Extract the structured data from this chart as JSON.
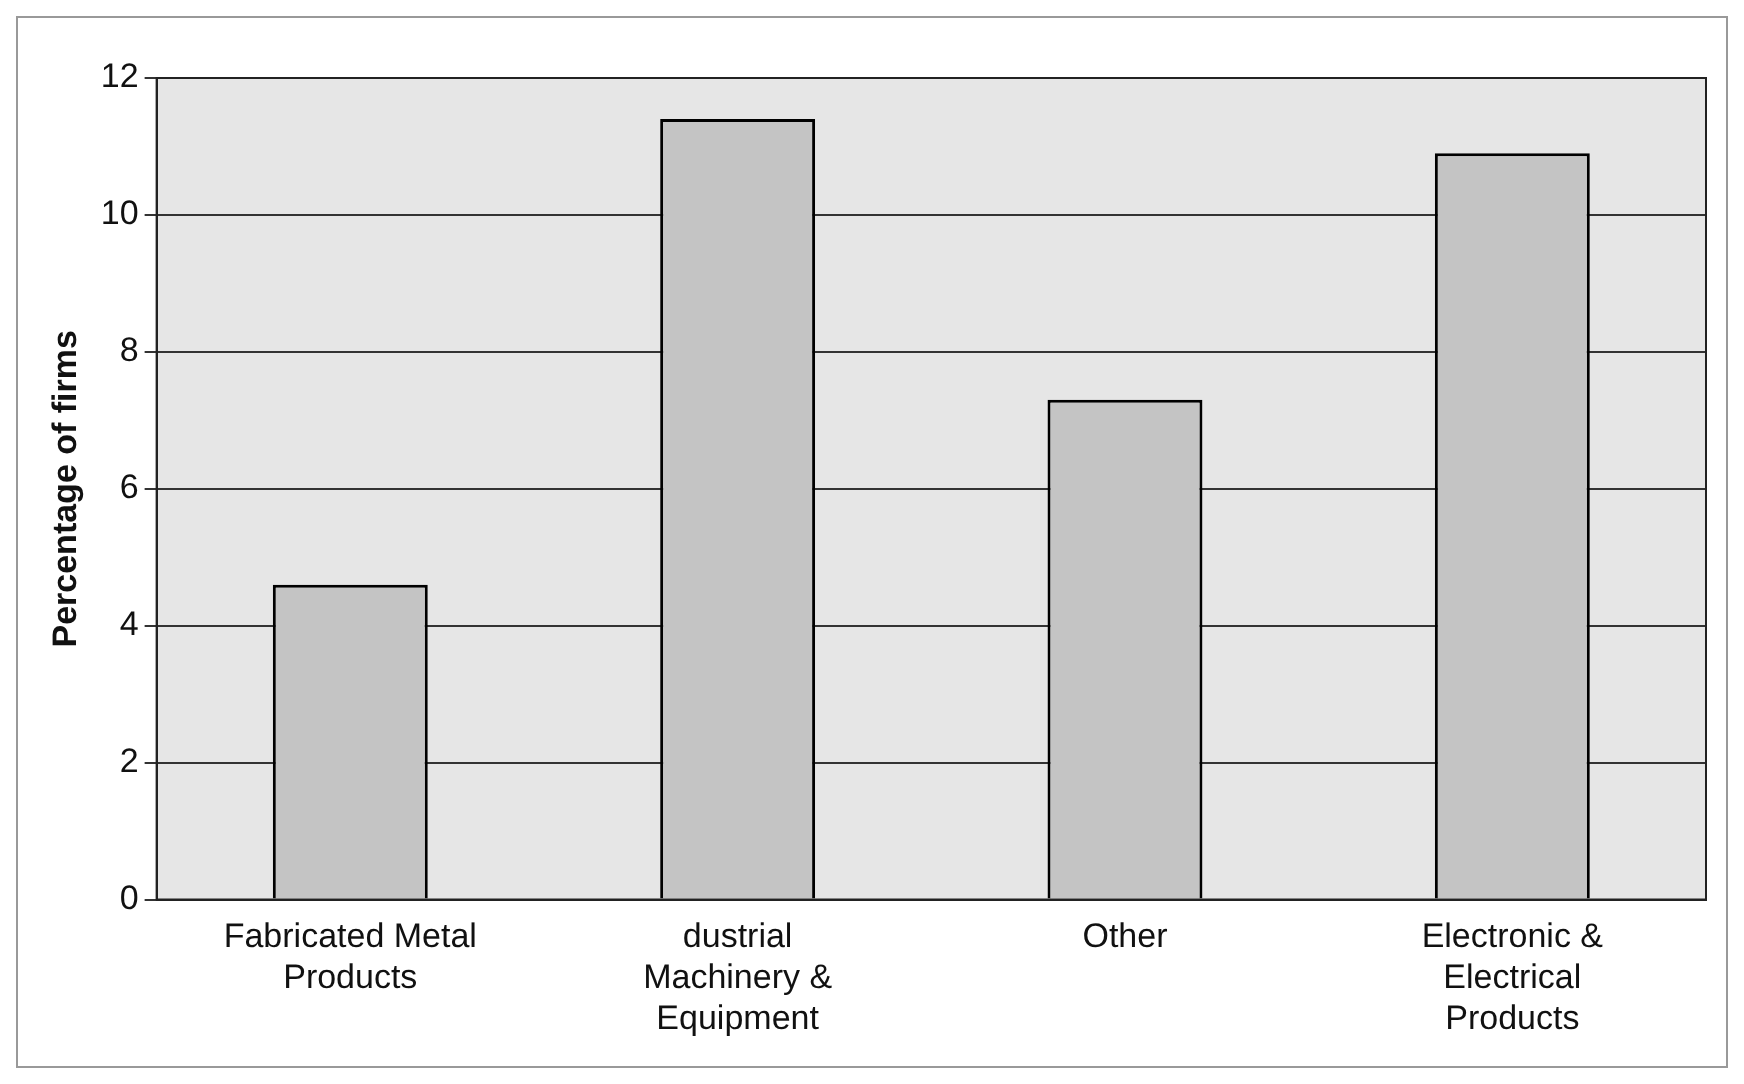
{
  "chart_data": {
    "type": "bar",
    "ylabel": "Percentage of firms",
    "categories": [
      "Fabricated Metal Products",
      "dustrial Machinery & Equipment",
      "Other",
      "Electronic & Electrical Products"
    ],
    "values": [
      4.6,
      11.4,
      7.3,
      10.9
    ],
    "color": "#c4c4c4",
    "ylim": [
      0,
      12
    ],
    "yticks": [
      0,
      2,
      4,
      6,
      8,
      10,
      12
    ],
    "grid": "y",
    "legend": false
  }
}
